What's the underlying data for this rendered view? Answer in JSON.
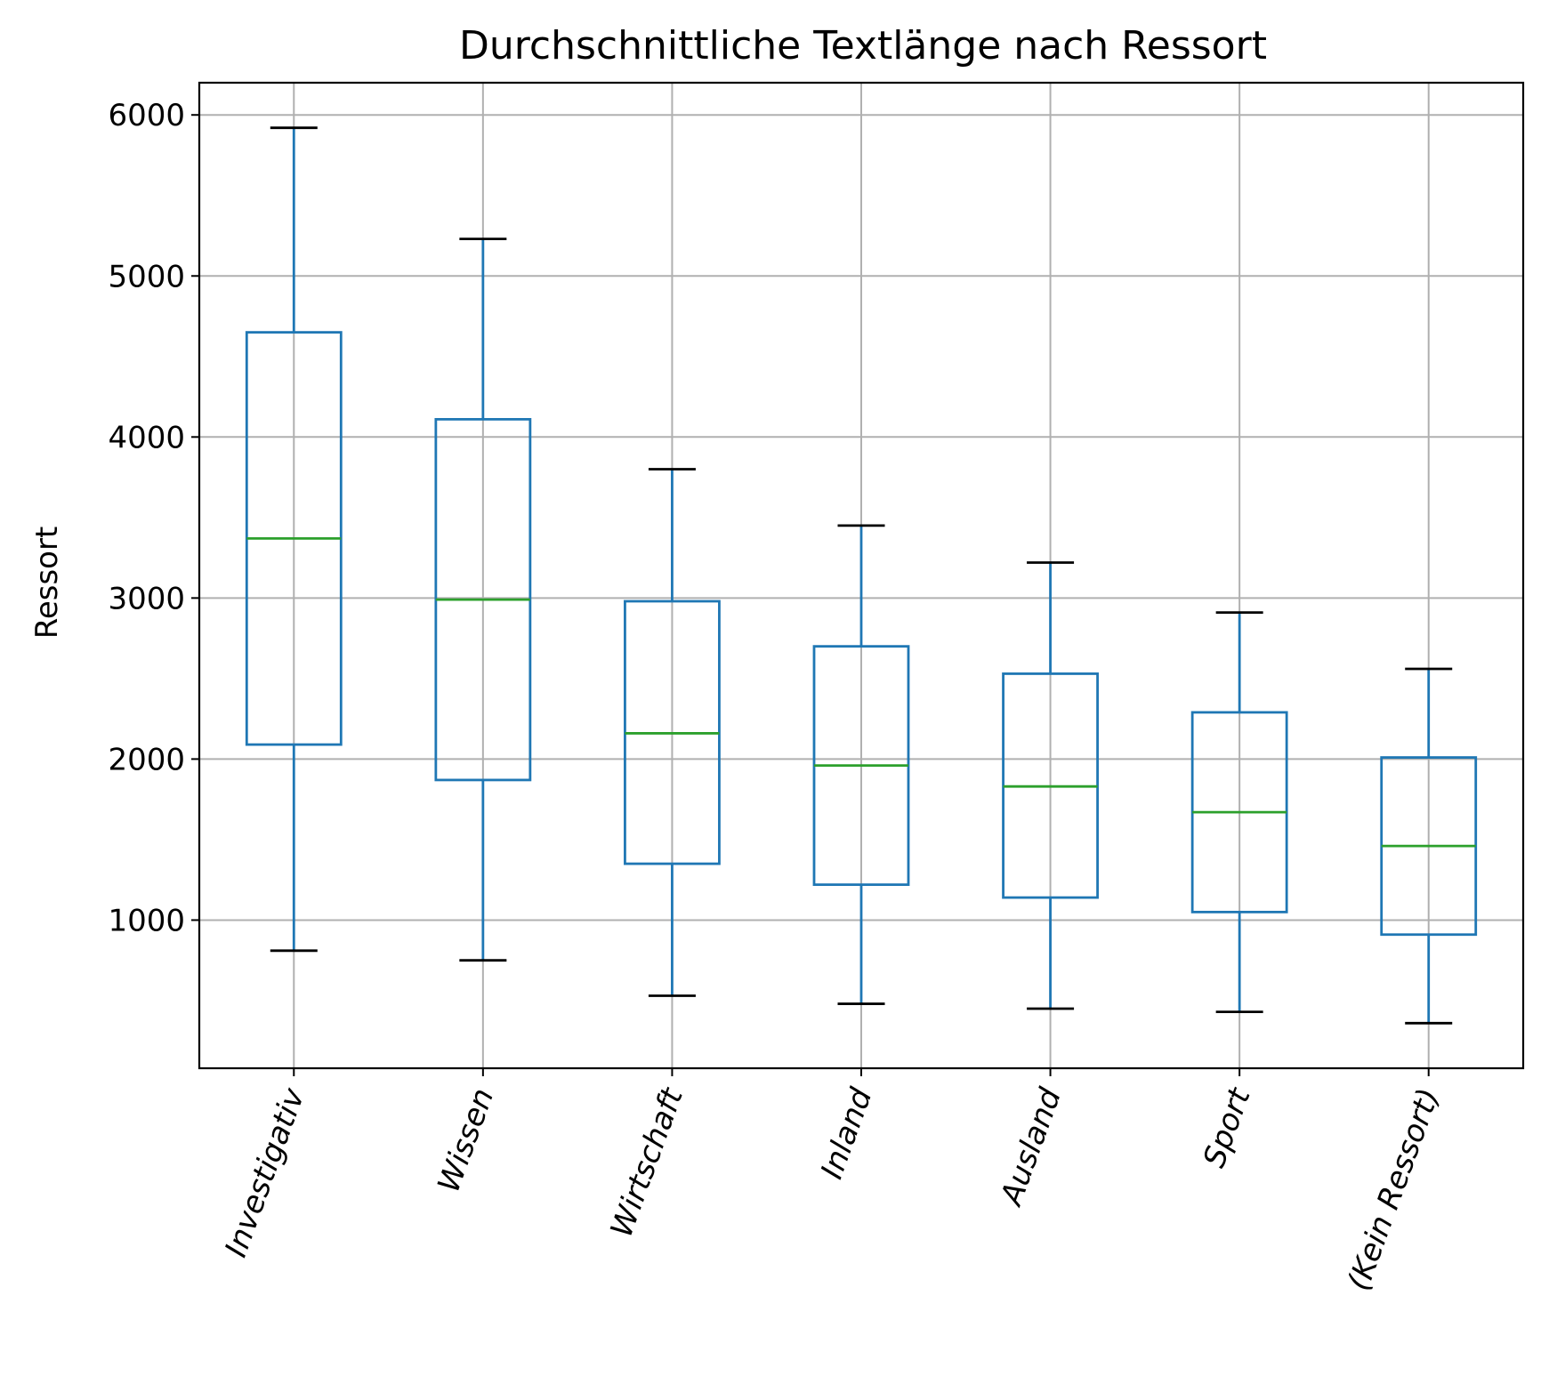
{
  "chart_data": {
    "type": "box",
    "title": "Durchschnittliche Textlänge nach Ressort",
    "xlabel": "",
    "ylabel": "Ressort",
    "ylim": [
      80,
      6200
    ],
    "yticks": [
      1000,
      2000,
      3000,
      4000,
      5000,
      6000
    ],
    "grid": true,
    "legend": "none",
    "categories": [
      "Investigativ",
      "Wissen",
      "Wirtschaft",
      "Inland",
      "Ausland",
      "Sport",
      "(Kein Ressort)"
    ],
    "boxes": [
      {
        "whisker_low": 810,
        "q1": 2090,
        "median": 3370,
        "q3": 4650,
        "whisker_high": 5920
      },
      {
        "whisker_low": 750,
        "q1": 1870,
        "median": 2990,
        "q3": 4110,
        "whisker_high": 5230
      },
      {
        "whisker_low": 530,
        "q1": 1350,
        "median": 2160,
        "q3": 2980,
        "whisker_high": 3800
      },
      {
        "whisker_low": 480,
        "q1": 1220,
        "median": 1960,
        "q3": 2700,
        "whisker_high": 3450
      },
      {
        "whisker_low": 450,
        "q1": 1140,
        "median": 1830,
        "q3": 2530,
        "whisker_high": 3220
      },
      {
        "whisker_low": 430,
        "q1": 1050,
        "median": 1670,
        "q3": 2290,
        "whisker_high": 2910
      },
      {
        "whisker_low": 360,
        "q1": 910,
        "median": 1460,
        "q3": 2010,
        "whisker_high": 2560
      }
    ],
    "colors": {
      "box": "#1f77b4",
      "median": "#2ca02c",
      "cap": "#000000",
      "grid": "#b0b0b0",
      "axes": "#000000"
    }
  }
}
